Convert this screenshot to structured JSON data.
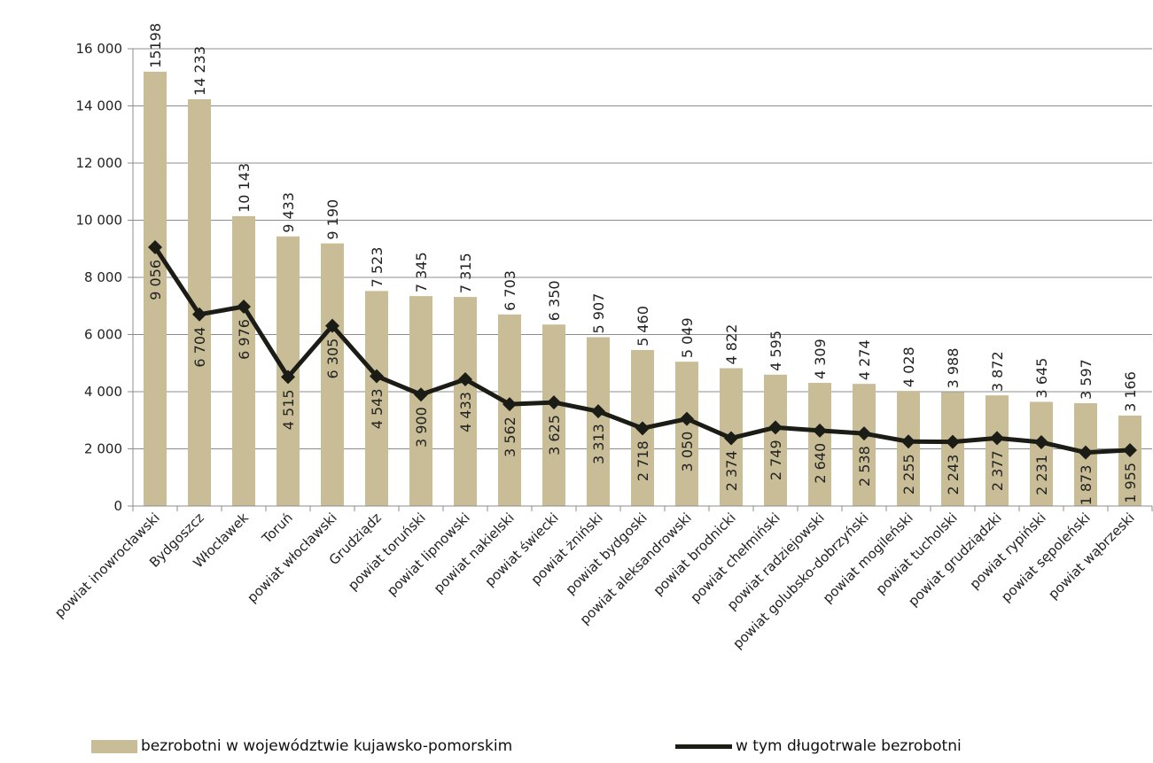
{
  "chart_data": {
    "type": "bar",
    "categories": [
      "powiat inowrocławski",
      "Bydgoszcz",
      "Włocławek",
      "Toruń",
      "powiat włocławski",
      "Grudziądz",
      "powiat toruński",
      "powiat lipnowski",
      "powiat nakielski",
      "powiat świecki",
      "powiat żniński",
      "powiat bydgoski",
      "powiat aleksandrowski",
      "powiat brodnicki",
      "powiat chełmiński",
      "powiat radziejowski",
      "powiat golubsko-dobrzyński",
      "powiat mogileński",
      "powiat tucholski",
      "powiat grudziądzki",
      "powiat rypiński",
      "powiat sępoleński",
      "powiat wąbrzeski"
    ],
    "series": [
      {
        "name": "bezrobotni w województwie kujawsko-pomorskim",
        "type": "bar",
        "color": "#c8bd96",
        "values": [
          15198,
          14233,
          10143,
          9433,
          9190,
          7523,
          7345,
          7315,
          6703,
          6350,
          5907,
          5460,
          5049,
          4822,
          4595,
          4309,
          4274,
          4028,
          3988,
          3872,
          3645,
          3597,
          3166
        ],
        "labels": [
          "15198",
          "14 233",
          "10 143",
          "9 433",
          "9 190",
          "7 523",
          "7 345",
          "7 315",
          "6 703",
          "6 350",
          "5 907",
          "5 460",
          "5 049",
          "4 822",
          "4 595",
          "4 309",
          "4 274",
          "4 028",
          "3 988",
          "3 872",
          "3 645",
          "3 597",
          "3 166"
        ]
      },
      {
        "name": "w tym długotrwale bezrobotni",
        "type": "line",
        "color": "#1c1c16",
        "values": [
          9056,
          6704,
          6976,
          4515,
          6305,
          4543,
          3900,
          4433,
          3562,
          3625,
          3313,
          2718,
          3050,
          2374,
          2749,
          2640,
          2538,
          2255,
          2243,
          2377,
          2231,
          1873,
          1955
        ],
        "labels": [
          "9 056",
          "6 704",
          "6 976",
          "4 515",
          "6 305",
          "4 543",
          "3 900",
          "4 433",
          "3 562",
          "3 625",
          "3 313",
          "2 718",
          "3 050",
          "2 374",
          "2 749",
          "2 640",
          "2 538",
          "2 255",
          "2 243",
          "2 377",
          "2 231",
          "1 873",
          "1 955"
        ]
      }
    ],
    "ylim": [
      0,
      16000
    ],
    "yticks": [
      0,
      2000,
      4000,
      6000,
      8000,
      10000,
      12000,
      14000,
      16000
    ],
    "ytick_labels": [
      "0",
      "2 000",
      "4 000",
      "6 000",
      "8 000",
      "10 000",
      "12 000",
      "14 000",
      "16 000"
    ],
    "grid": true,
    "legend_position": "bottom"
  }
}
